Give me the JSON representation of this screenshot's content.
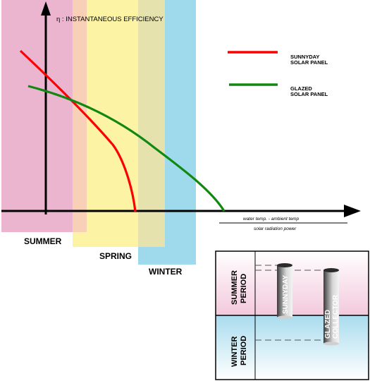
{
  "main_chart": {
    "y_label": "η : INSTANTANEOUS EFFICIENCY",
    "x_label_top": "water temp. - ambient temp",
    "x_label_bottom": "solar radiation power",
    "seasons": {
      "summer": "SUMMER",
      "spring": "SPRING",
      "winter": "WINTER"
    },
    "legend": {
      "sunnyday": {
        "line1": "SUNNYDAY",
        "line2": "SOLAR PANEL",
        "color": "#ff0000"
      },
      "glazed": {
        "line1": "GLAZED",
        "line2": "SOLAR PANEL",
        "color": "#118811"
      }
    }
  },
  "inset": {
    "summer_period": [
      "SUMMER",
      "PERIOD"
    ],
    "winter_period": [
      "WINTER",
      "PERIOD"
    ],
    "sunnyday_label": "SUNNYDAY",
    "glazed_label": [
      "GLAZED",
      "COLLECTOR"
    ]
  }
}
